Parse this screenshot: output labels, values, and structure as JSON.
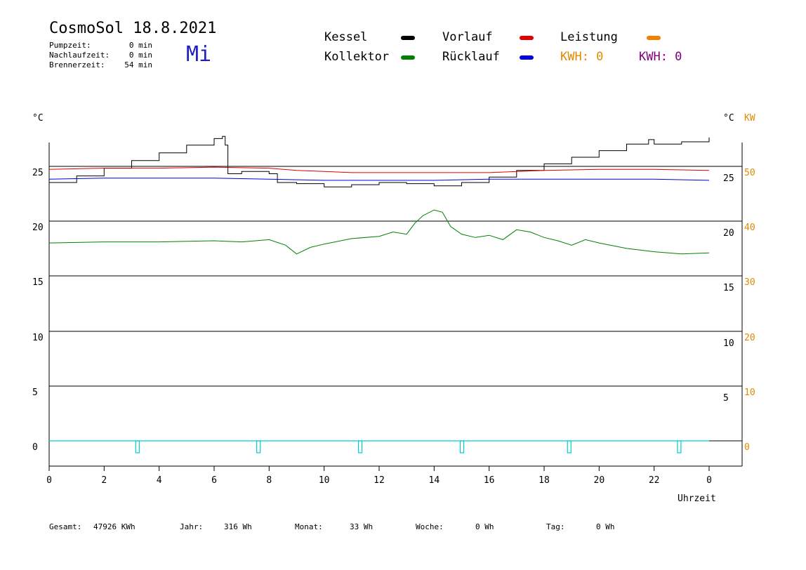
{
  "header": {
    "title": "CosmoSol 18.8.2021",
    "day": "Mi",
    "stats": [
      {
        "label": "Pumpzeit:",
        "value": "0 min"
      },
      {
        "label": "Nachlaufzeit:",
        "value": "0 min"
      },
      {
        "label": "Brennerzeit:",
        "value": "54 min"
      }
    ]
  },
  "legend": {
    "kessel": {
      "label": "Kessel",
      "color": "#000000"
    },
    "kollektor": {
      "label": "Kollektor",
      "color": "#008000"
    },
    "vorlauf": {
      "label": "Vorlauf",
      "color": "#e00000"
    },
    "ruecklauf": {
      "label": "Rücklauf",
      "color": "#0000e0"
    },
    "leistung": {
      "label": "Leistung",
      "color": "#f08000"
    },
    "kwh1": "KWH: 0",
    "kwh2": "KWH: 0"
  },
  "colors": {
    "kwh1": "#e08a00",
    "kwh2": "#800080",
    "orange_axis": "#e08a00",
    "pump": "#00cccc"
  },
  "axes": {
    "left_unit": "°C",
    "right_unit_c": "°C",
    "right_unit_kw": "KW",
    "xlabel": "Uhrzeit",
    "left_ticks": [
      "25",
      "20",
      "15",
      "10",
      "5",
      "0"
    ],
    "right_ticks_c": [
      "25",
      "20",
      "15",
      "10",
      "5"
    ],
    "right_ticks_kw": [
      "50",
      "40",
      "30",
      "20",
      "10",
      "0"
    ],
    "x_ticks": [
      "0",
      "2",
      "4",
      "6",
      "8",
      "10",
      "12",
      "14",
      "16",
      "18",
      "20",
      "22",
      "0"
    ]
  },
  "chart_data": {
    "type": "line",
    "x_unit": "hour",
    "xlim": [
      0,
      24
    ],
    "ylim": [
      0,
      25
    ],
    "y2lim": [
      0,
      50
    ],
    "series": [
      {
        "name": "Kessel",
        "color": "#000000",
        "x": [
          0,
          1,
          2,
          3,
          4,
          5,
          6,
          6.3,
          6.4,
          6.5,
          7,
          7.6,
          8,
          8.3,
          9,
          10,
          11,
          12,
          13,
          14,
          15,
          16,
          17,
          18,
          19,
          20,
          21,
          21.8,
          22,
          22.5,
          23,
          24
        ],
        "y": [
          23.5,
          24.1,
          24.8,
          25.5,
          26.2,
          26.9,
          27.5,
          27.7,
          26.9,
          24.3,
          24.5,
          24.5,
          24.3,
          23.5,
          23.4,
          23.1,
          23.3,
          23.5,
          23.4,
          23.2,
          23.5,
          24.0,
          24.6,
          25.2,
          25.8,
          26.4,
          27.0,
          27.4,
          27.0,
          27.0,
          27.2,
          27.6
        ]
      },
      {
        "name": "Vorlauf",
        "color": "#e00000",
        "x": [
          0,
          2,
          4,
          6,
          8,
          9,
          10,
          11,
          12,
          14,
          16,
          18,
          20,
          22,
          24
        ],
        "y": [
          24.7,
          24.8,
          24.8,
          24.9,
          24.8,
          24.6,
          24.5,
          24.4,
          24.4,
          24.4,
          24.4,
          24.6,
          24.7,
          24.7,
          24.6
        ]
      },
      {
        "name": "Rücklauf",
        "color": "#0000e0",
        "x": [
          0,
          2,
          4,
          6,
          8,
          10,
          12,
          14,
          16,
          18,
          20,
          22,
          24
        ],
        "y": [
          23.8,
          23.9,
          23.9,
          23.9,
          23.8,
          23.7,
          23.7,
          23.7,
          23.8,
          23.8,
          23.8,
          23.8,
          23.7
        ]
      },
      {
        "name": "Kollektor",
        "color": "#008000",
        "x": [
          0,
          2,
          4,
          6,
          7,
          8,
          8.6,
          9,
          9.5,
          10,
          11,
          12,
          12.5,
          13,
          13.3,
          13.6,
          14,
          14.3,
          14.6,
          15,
          15.5,
          16,
          16.5,
          17,
          17.5,
          18,
          18.5,
          19,
          19.5,
          20,
          21,
          22,
          23,
          24
        ],
        "y": [
          18.0,
          18.1,
          18.1,
          18.2,
          18.1,
          18.3,
          17.8,
          17.0,
          17.6,
          17.9,
          18.4,
          18.6,
          19.0,
          18.8,
          19.8,
          20.5,
          21.0,
          20.8,
          19.5,
          18.8,
          18.5,
          18.7,
          18.3,
          19.2,
          19.0,
          18.5,
          18.2,
          17.8,
          18.3,
          18.0,
          17.5,
          17.2,
          17.0,
          17.1
        ]
      },
      {
        "name": "Pumpe",
        "color": "#00cccc",
        "x": [
          0,
          3.2,
          7.6,
          11.3,
          15.0,
          18.9,
          22.9,
          24
        ],
        "y": [
          0,
          0,
          0,
          0,
          0,
          0,
          0,
          0
        ]
      }
    ]
  },
  "footer": [
    {
      "label": "Gesamt:",
      "value": "47926 KWh"
    },
    {
      "label": "Jahr:",
      "value": "316 Wh"
    },
    {
      "label": "Monat:",
      "value": "33 Wh"
    },
    {
      "label": "Woche:",
      "value": "0 Wh"
    },
    {
      "label": "Tag:",
      "value": "0 Wh"
    }
  ]
}
